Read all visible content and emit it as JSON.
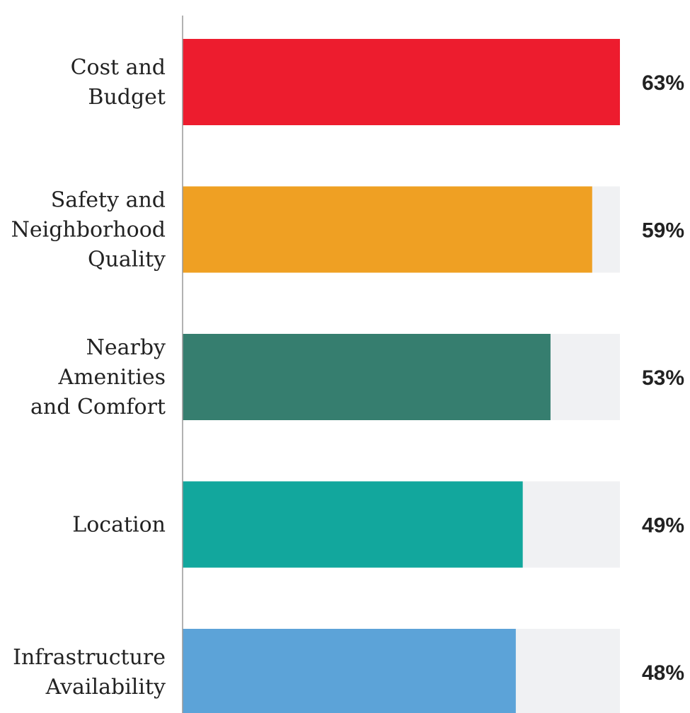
{
  "chart_data": {
    "type": "bar",
    "orientation": "horizontal",
    "categories": [
      [
        "Cost and",
        "Budget"
      ],
      [
        "Safety and",
        "Neighborhood",
        "Quality"
      ],
      [
        "Nearby",
        "Amenities",
        "and Comfort"
      ],
      [
        "Location"
      ],
      [
        "Infrastructure",
        "Availability"
      ]
    ],
    "values": [
      63,
      59,
      53,
      49,
      48
    ],
    "value_labels": [
      "63%",
      "59%",
      "53%",
      "49%",
      "48%"
    ],
    "xlim": [
      0,
      63
    ],
    "colors": [
      "#ed1c2e",
      "#efa023",
      "#367e6f",
      "#12a79d",
      "#5ca3d8"
    ],
    "track_color": "#f0f1f3",
    "axis_color": "#999999"
  }
}
